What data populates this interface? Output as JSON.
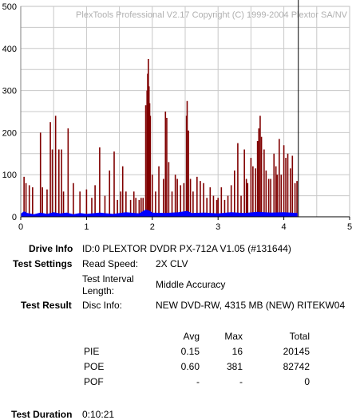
{
  "chart_data": {
    "type": "bar",
    "title": "PlexTools Professional V2.17 Copyright (C) 1999-2004 Plextor SA/NV",
    "xlabel": "",
    "ylabel": "",
    "xlim": [
      0,
      5
    ],
    "ylim": [
      0,
      500
    ],
    "x_ticks": [
      "0",
      "1",
      "2",
      "3",
      "4",
      "5"
    ],
    "y_ticks": [
      "0",
      "100",
      "200",
      "300",
      "400",
      "500"
    ],
    "grid": true,
    "end_marker_x": 4.22,
    "series": [
      {
        "color": "#800000",
        "points": [
          [
            0.05,
            95
          ],
          [
            0.08,
            80
          ],
          [
            0.13,
            75
          ],
          [
            0.18,
            70
          ],
          [
            0.3,
            200
          ],
          [
            0.33,
            70
          ],
          [
            0.4,
            65
          ],
          [
            0.45,
            225
          ],
          [
            0.48,
            160
          ],
          [
            0.53,
            240
          ],
          [
            0.58,
            160
          ],
          [
            0.62,
            160
          ],
          [
            0.65,
            60
          ],
          [
            0.72,
            210
          ],
          [
            0.8,
            80
          ],
          [
            0.9,
            60
          ],
          [
            1.0,
            65
          ],
          [
            1.08,
            45
          ],
          [
            1.13,
            75
          ],
          [
            1.2,
            165
          ],
          [
            1.28,
            50
          ],
          [
            1.35,
            110
          ],
          [
            1.42,
            155
          ],
          [
            1.47,
            40
          ],
          [
            1.52,
            60
          ],
          [
            1.55,
            120
          ],
          [
            1.6,
            60
          ],
          [
            1.67,
            40
          ],
          [
            1.72,
            60
          ],
          [
            1.75,
            45
          ],
          [
            1.8,
            40
          ],
          [
            1.83,
            45
          ],
          [
            1.86,
            45
          ],
          [
            1.9,
            265
          ],
          [
            1.92,
            300
          ],
          [
            1.93,
            340
          ],
          [
            1.94,
            375
          ],
          [
            1.95,
            310
          ],
          [
            1.96,
            270
          ],
          [
            1.97,
            240
          ],
          [
            2.0,
            100
          ],
          [
            2.05,
            60
          ],
          [
            2.1,
            120
          ],
          [
            2.17,
            90
          ],
          [
            2.2,
            250
          ],
          [
            2.22,
            235
          ],
          [
            2.25,
            130
          ],
          [
            2.3,
            60
          ],
          [
            2.35,
            100
          ],
          [
            2.38,
            90
          ],
          [
            2.43,
            75
          ],
          [
            2.48,
            80
          ],
          [
            2.52,
            240
          ],
          [
            2.53,
            275
          ],
          [
            2.55,
            205
          ],
          [
            2.58,
            90
          ],
          [
            2.62,
            60
          ],
          [
            2.68,
            95
          ],
          [
            2.73,
            85
          ],
          [
            2.78,
            80
          ],
          [
            2.83,
            45
          ],
          [
            2.88,
            70
          ],
          [
            2.93,
            50
          ],
          [
            2.98,
            40
          ],
          [
            3.0,
            45
          ],
          [
            3.05,
            70
          ],
          [
            3.1,
            40
          ],
          [
            3.15,
            50
          ],
          [
            3.2,
            75
          ],
          [
            3.25,
            110
          ],
          [
            3.3,
            175
          ],
          [
            3.35,
            50
          ],
          [
            3.4,
            160
          ],
          [
            3.43,
            90
          ],
          [
            3.45,
            80
          ],
          [
            3.5,
            140
          ],
          [
            3.53,
            120
          ],
          [
            3.57,
            115
          ],
          [
            3.6,
            180
          ],
          [
            3.62,
            210
          ],
          [
            3.64,
            240
          ],
          [
            3.66,
            190
          ],
          [
            3.7,
            160
          ],
          [
            3.73,
            110
          ],
          [
            3.77,
            90
          ],
          [
            3.8,
            90
          ],
          [
            3.85,
            150
          ],
          [
            3.88,
            120
          ],
          [
            3.9,
            100
          ],
          [
            3.93,
            185
          ],
          [
            3.96,
            100
          ],
          [
            4.0,
            170
          ],
          [
            4.03,
            140
          ],
          [
            4.06,
            150
          ],
          [
            4.1,
            115
          ],
          [
            4.13,
            145
          ],
          [
            4.17,
            80
          ],
          [
            4.2,
            85
          ]
        ]
      },
      {
        "color": "#0000ff",
        "points": [
          [
            0.0,
            6
          ],
          [
            0.05,
            12
          ],
          [
            0.1,
            8
          ],
          [
            0.2,
            5
          ],
          [
            0.3,
            9
          ],
          [
            0.4,
            6
          ],
          [
            0.5,
            10
          ],
          [
            0.6,
            7
          ],
          [
            0.7,
            9
          ],
          [
            0.8,
            5
          ],
          [
            0.9,
            8
          ],
          [
            1.0,
            6
          ],
          [
            1.2,
            9
          ],
          [
            1.4,
            6
          ],
          [
            1.6,
            10
          ],
          [
            1.8,
            7
          ],
          [
            1.9,
            16
          ],
          [
            1.95,
            14
          ],
          [
            2.0,
            9
          ],
          [
            2.2,
            8
          ],
          [
            2.4,
            10
          ],
          [
            2.53,
            13
          ],
          [
            2.6,
            8
          ],
          [
            2.8,
            9
          ],
          [
            3.0,
            7
          ],
          [
            3.2,
            10
          ],
          [
            3.4,
            8
          ],
          [
            3.6,
            11
          ],
          [
            3.8,
            9
          ],
          [
            4.0,
            10
          ],
          [
            4.2,
            8
          ]
        ]
      }
    ]
  },
  "info": {
    "drive_label": "Drive Info",
    "drive_value": "ID:0 PLEXTOR DVDR PX-712A V1.05 (#131644)",
    "settings_label": "Test Settings",
    "read_speed_label": "Read Speed:",
    "read_speed_value": "2X CLV",
    "interval_label_1": "Test Interval",
    "interval_label_2": "Length:",
    "interval_value": "Middle Accuracy",
    "result_label": "Test Result",
    "disc_info_label": "Disc Info:",
    "disc_info_value": "NEW DVD-RW, 4315 MB (NEW) RITEKW04",
    "duration_label": "Test Duration",
    "duration_value": "0:10:21"
  },
  "stats": {
    "headers": {
      "avg": "Avg",
      "max": "Max",
      "total": "Total"
    },
    "rows": [
      {
        "name": "PIE",
        "avg": "0.15",
        "max": "16",
        "total": "20145"
      },
      {
        "name": "POE",
        "avg": "0.60",
        "max": "381",
        "total": "82742"
      },
      {
        "name": "POF",
        "avg": "-",
        "max": "-",
        "total": "0"
      }
    ]
  }
}
